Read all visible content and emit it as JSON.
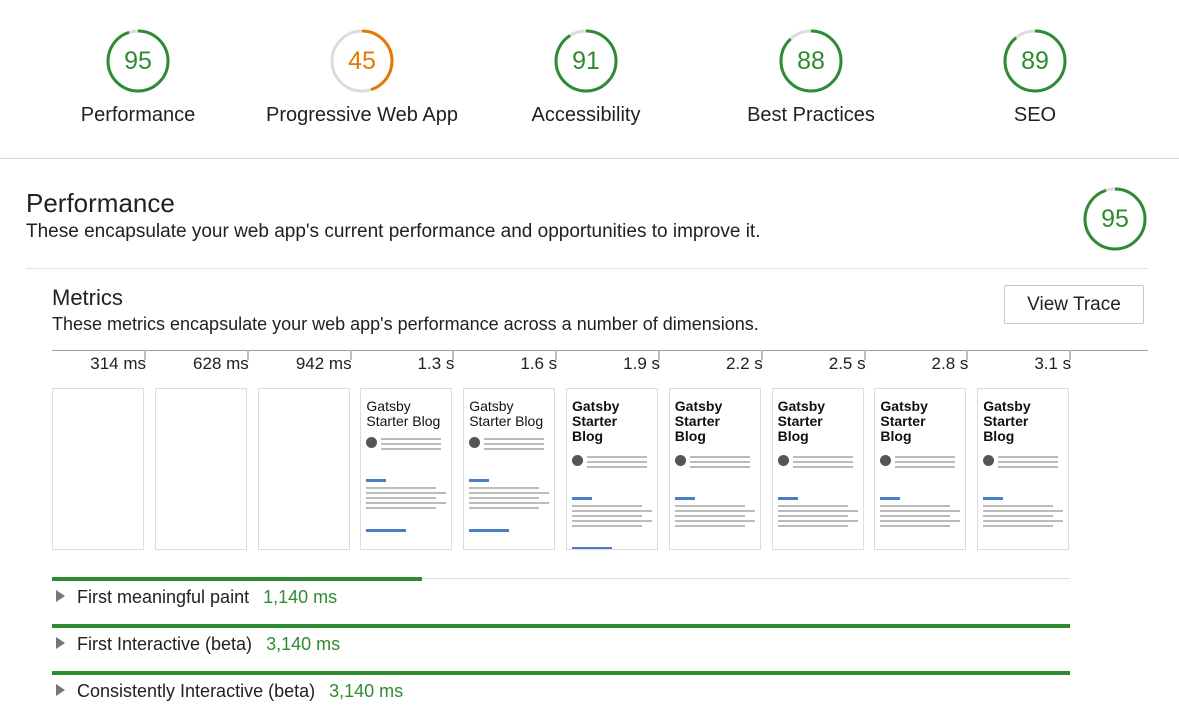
{
  "colors": {
    "pass": "#2e8b30",
    "average": "#e67700",
    "ring_bg": "#dcdcdc"
  },
  "categories": [
    {
      "score": 95,
      "label": "Performance",
      "color": "#2e8b30"
    },
    {
      "score": 45,
      "label": "Progressive Web App",
      "color": "#e67700"
    },
    {
      "score": 91,
      "label": "Accessibility",
      "color": "#2e8b30"
    },
    {
      "score": 88,
      "label": "Best Practices",
      "color": "#2e8b30"
    },
    {
      "score": 89,
      "label": "SEO",
      "color": "#2e8b30"
    }
  ],
  "performance": {
    "title": "Performance",
    "description": "These encapsulate your web app's current performance and opportunities to improve it.",
    "score": 95
  },
  "metrics": {
    "title": "Metrics",
    "description": "These metrics encapsulate your web app's performance across a number of dimensions.",
    "view_trace_label": "View Trace",
    "timeline": [
      "314 ms",
      "628 ms",
      "942 ms",
      "1.3 s",
      "1.6 s",
      "1.9 s",
      "2.2 s",
      "2.5 s",
      "2.8 s",
      "3.1 s"
    ],
    "frame_title_early": "Gatsby Starter Blog",
    "frame_title_late": "Gatsby Starter Blog",
    "rows": [
      {
        "label": "First meaningful paint",
        "value": "1,140 ms",
        "fraction": 0.363
      },
      {
        "label": "First Interactive (beta)",
        "value": "3,140 ms",
        "fraction": 1.0
      },
      {
        "label": "Consistently Interactive (beta)",
        "value": "3,140 ms",
        "fraction": 1.0
      }
    ]
  }
}
